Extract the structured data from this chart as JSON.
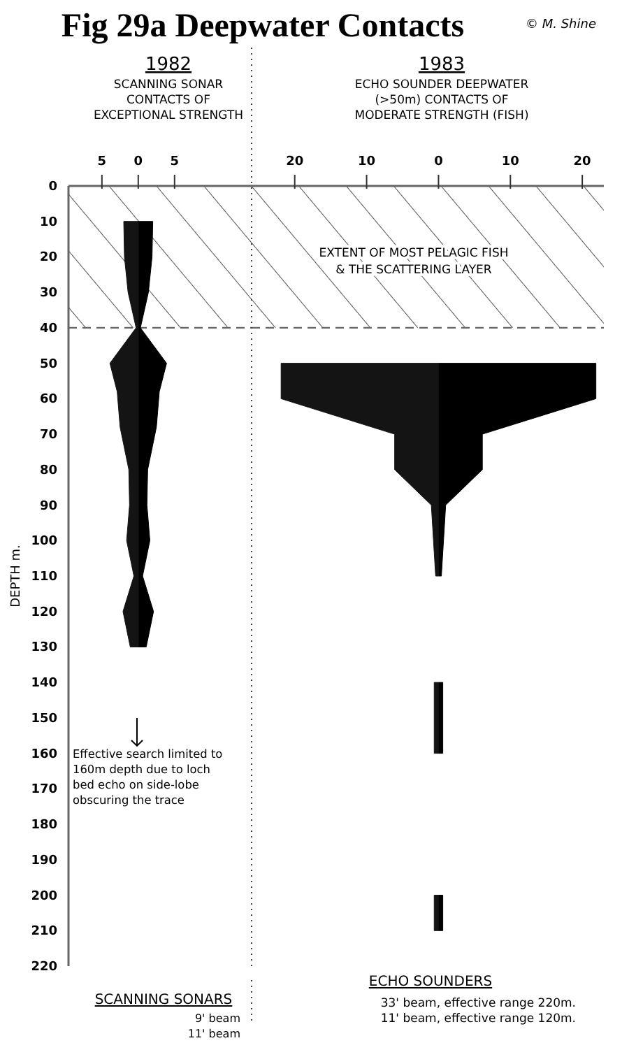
{
  "chart_data": [
    {
      "type": "area",
      "orientation": "horizontal",
      "title": "Fig 29a Deepwater Contacts",
      "subtitle": "1982",
      "ylabel": "DEPTH m.",
      "xlim": [
        -9.6,
        15.6
      ],
      "xticks": [
        {
          "value": -5,
          "label": "5"
        },
        0,
        5
      ],
      "ylim": [
        220,
        0
      ],
      "yticks": [
        0,
        10,
        20,
        30,
        40,
        50,
        60,
        70,
        80,
        90,
        100,
        110,
        120,
        130,
        140,
        150,
        160,
        170,
        180,
        190,
        200,
        210,
        220
      ],
      "bands": [
        {
          "axis": "y",
          "from": 0,
          "to": 40
        }
      ],
      "series": [
        {
          "color": "#000000",
          "x": [
            10,
            20,
            30,
            40,
            50,
            58,
            68,
            80,
            90,
            100,
            110,
            120,
            130
          ],
          "values": [
            2.0,
            1.9,
            1.4,
            0.3,
            3.9,
            2.9,
            2.5,
            1.3,
            1.2,
            1.6,
            0.6,
            2.1,
            1.1
          ]
        },
        {
          "color": "#141414",
          "x": [
            10,
            20,
            30,
            40,
            50,
            58,
            68,
            80,
            90,
            100,
            110,
            120,
            130
          ],
          "values": [
            -2.0,
            -1.9,
            -1.4,
            -0.3,
            -3.9,
            -2.9,
            -2.5,
            -1.3,
            -1.2,
            -1.6,
            -0.6,
            -2.1,
            -1.1
          ]
        }
      ],
      "annotations": [
        "SCANNING SONAR\nCONTACTS OF\nEXCEPTIONAL STRENGTH",
        "Effective search limited to\n160m depth due to loch\nbed echo on side-lobe\nobscuring the trace",
        "SCANNING SONARS",
        "9' beam\n11' beam",
        "© M. Shine"
      ]
    },
    {
      "type": "area",
      "orientation": "horizontal",
      "subtitle": "1983",
      "xlim": [
        -26,
        23
      ],
      "xticks": [
        {
          "value": -20,
          "label": "20"
        },
        {
          "value": -10,
          "label": "10"
        },
        0,
        10,
        20
      ],
      "ylim": [
        220,
        0
      ],
      "tick_labels": "x",
      "bands": [
        {
          "axis": "y",
          "from": 0,
          "to": 40,
          "label": "EXTENT OF MOST PELAGIC FISH\n& THE SCATTERING LAYER"
        }
      ],
      "series": [
        {
          "color": "#000000",
          "x": [
            50,
            60,
            70,
            80,
            90,
            110
          ],
          "values": [
            21.9,
            21.9,
            6.1,
            6.1,
            1.0,
            0.4
          ]
        },
        {
          "color": "#141414",
          "x": [
            50,
            60,
            70,
            80,
            90,
            110
          ],
          "values": [
            -21.9,
            -21.9,
            -6.1,
            -6.1,
            -1.0,
            -0.4
          ]
        },
        {
          "color": "#000000",
          "x": [
            140,
            160
          ],
          "values": [
            0.6,
            0.6
          ]
        },
        {
          "color": "#141414",
          "x": [
            140,
            160
          ],
          "values": [
            -0.6,
            -0.6
          ]
        },
        {
          "color": "#000000",
          "x": [
            200,
            210
          ],
          "values": [
            0.6,
            0.6
          ]
        },
        {
          "color": "#141414",
          "x": [
            200,
            210
          ],
          "values": [
            -0.6,
            -0.6
          ]
        }
      ],
      "annotations": [
        "ECHO SOUNDER DEEPWATER\n(>50m) CONTACTS OF\nMODERATE STRENGTH (FISH)",
        "ECHO SOUNDERS",
        "33' beam, effective range 220m.\n11' beam, effective range 120m."
      ]
    }
  ]
}
